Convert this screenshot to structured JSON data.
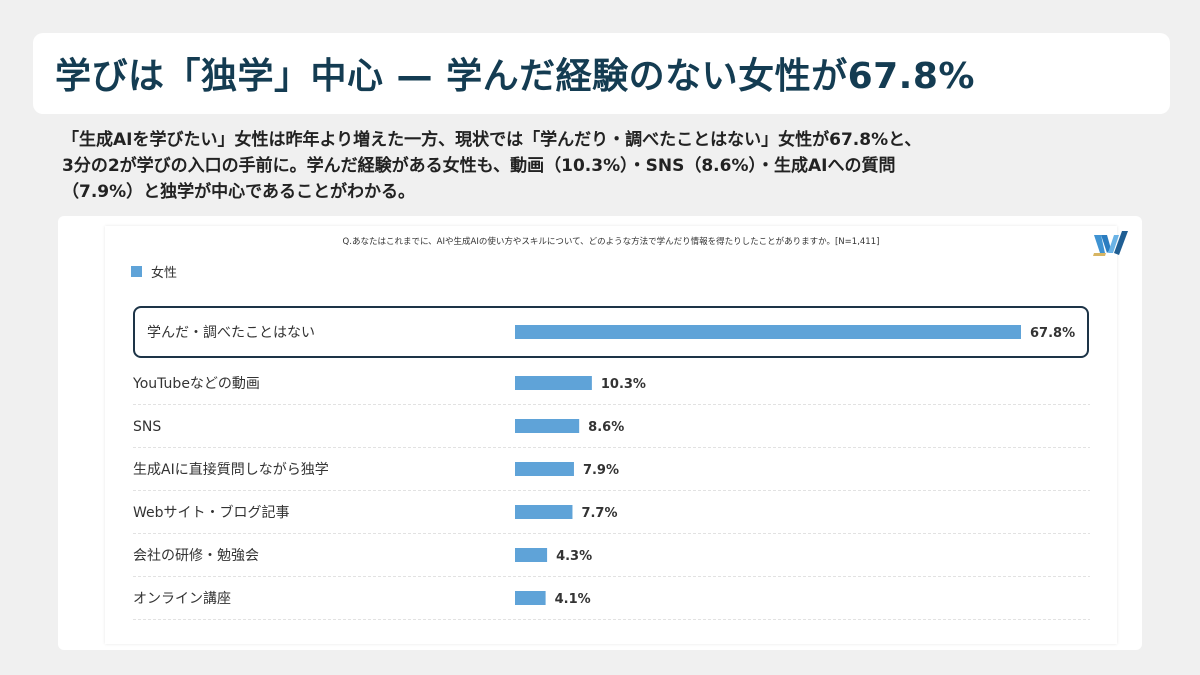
{
  "header": {
    "title": "学びは「独学」中心 — 学んだ経験のない女性が67.8%"
  },
  "summary": {
    "lines": [
      "「生成AIを学びたい」女性は昨年より増えた一方、現状では「学んだり・調べたことはない」女性が67.8%と、",
      "3分の2が学びの入口の手前に。学んだ経験がある女性も、動画（10.3%）・SNS（8.6%）・生成AIへの質問",
      "（7.9%）と独学が中心であることがわかる。"
    ]
  },
  "chart": {
    "question": "Q.あなたはこれまでに、AIや生成AIの使い方やスキルについて、どのような方法で学んだり情報を得たりしたことがありますか。[N=1,411]",
    "logo_icon": "w-logo-icon"
  },
  "chart_data": {
    "type": "bar",
    "orientation": "horizontal",
    "series": [
      {
        "name": "女性",
        "color": "#5fa3d8",
        "values": [
          67.8,
          10.3,
          8.6,
          7.9,
          7.7,
          4.3,
          4.1
        ]
      }
    ],
    "categories": [
      "学んだ・調べたことはない",
      "YouTubeなどの動画",
      "SNS",
      "生成AIに直接質問しながら独学",
      "Webサイト・ブログ記事",
      "会社の研修・勉強会",
      "オンライン講座"
    ],
    "value_labels": [
      "67.8%",
      "10.3%",
      "8.6%",
      "7.9%",
      "7.7%",
      "4.3%",
      "4.1%"
    ],
    "highlighted_category": "学んだ・調べたことはない",
    "xlim": [
      0,
      67.8
    ],
    "legend_position": "top-left",
    "grid": false
  }
}
